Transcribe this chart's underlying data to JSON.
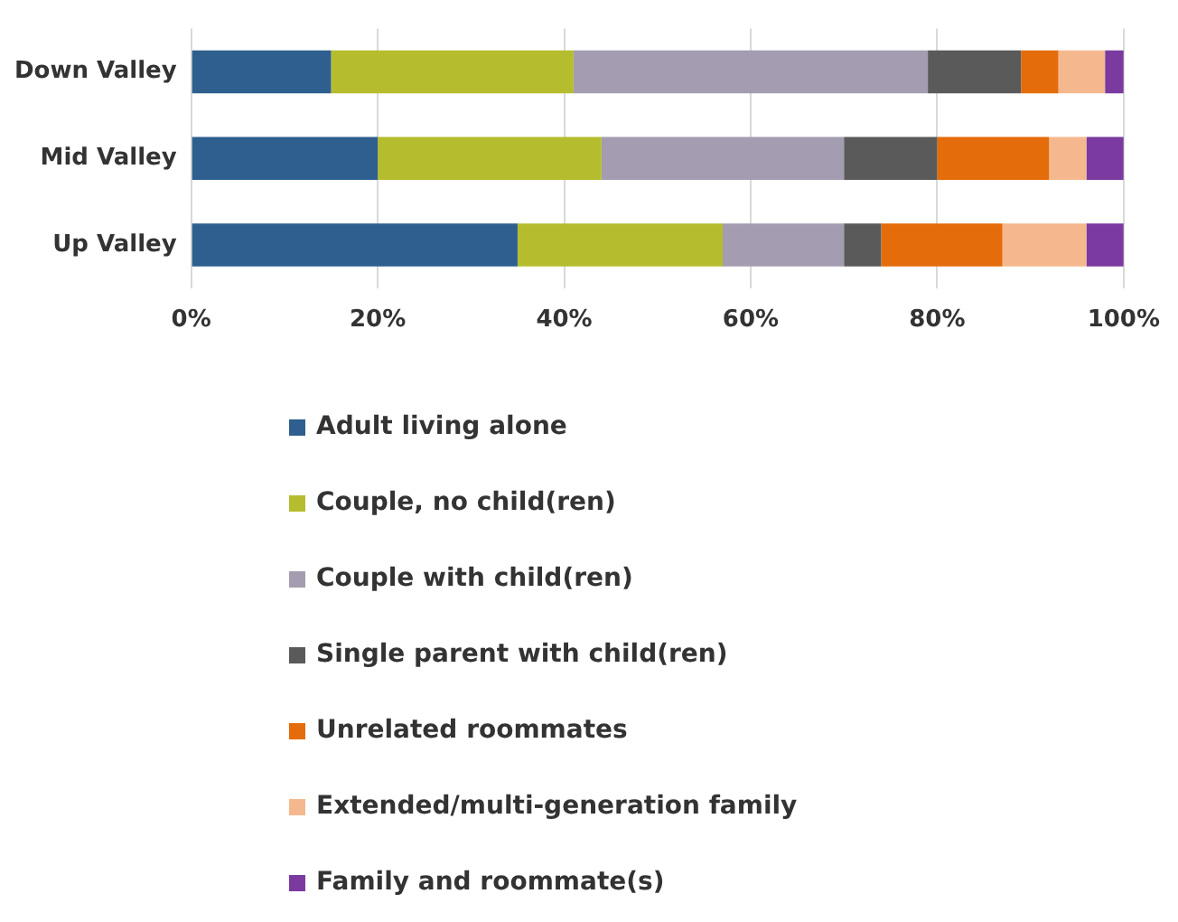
{
  "chart_data": {
    "type": "bar",
    "orientation": "horizontal",
    "stacked": true,
    "categories": [
      "Down Valley",
      "Mid Valley",
      "Up Valley"
    ],
    "series": [
      {
        "name": "Adult living alone",
        "color": "#2e5f8e",
        "values": [
          15,
          20,
          35
        ]
      },
      {
        "name": "Couple, no child(ren)",
        "color": "#b5bd2e",
        "values": [
          26,
          24,
          22
        ]
      },
      {
        "name": "Couple with child(ren)",
        "color": "#a49cb0",
        "values": [
          38,
          26,
          13
        ]
      },
      {
        "name": "Single parent with child(ren)",
        "color": "#5a5a5a",
        "values": [
          10,
          10,
          4
        ]
      },
      {
        "name": "Unrelated roommates",
        "color": "#e46c0a",
        "values": [
          4,
          12,
          13
        ]
      },
      {
        "name": "Extended/multi-generation family",
        "color": "#f5b88e",
        "values": [
          5,
          4,
          9
        ]
      },
      {
        "name": "Family and roommate(s)",
        "color": "#7a3aa0",
        "values": [
          2,
          4,
          4
        ]
      }
    ],
    "xlim": [
      0,
      100
    ],
    "xticks": [
      {
        "value": 0,
        "label": "0%"
      },
      {
        "value": 20,
        "label": "20%"
      },
      {
        "value": 40,
        "label": "40%"
      },
      {
        "value": 60,
        "label": "60%"
      },
      {
        "value": 80,
        "label": "80%"
      },
      {
        "value": 100,
        "label": "100%"
      }
    ],
    "grid": "x",
    "legend": "bottom"
  }
}
